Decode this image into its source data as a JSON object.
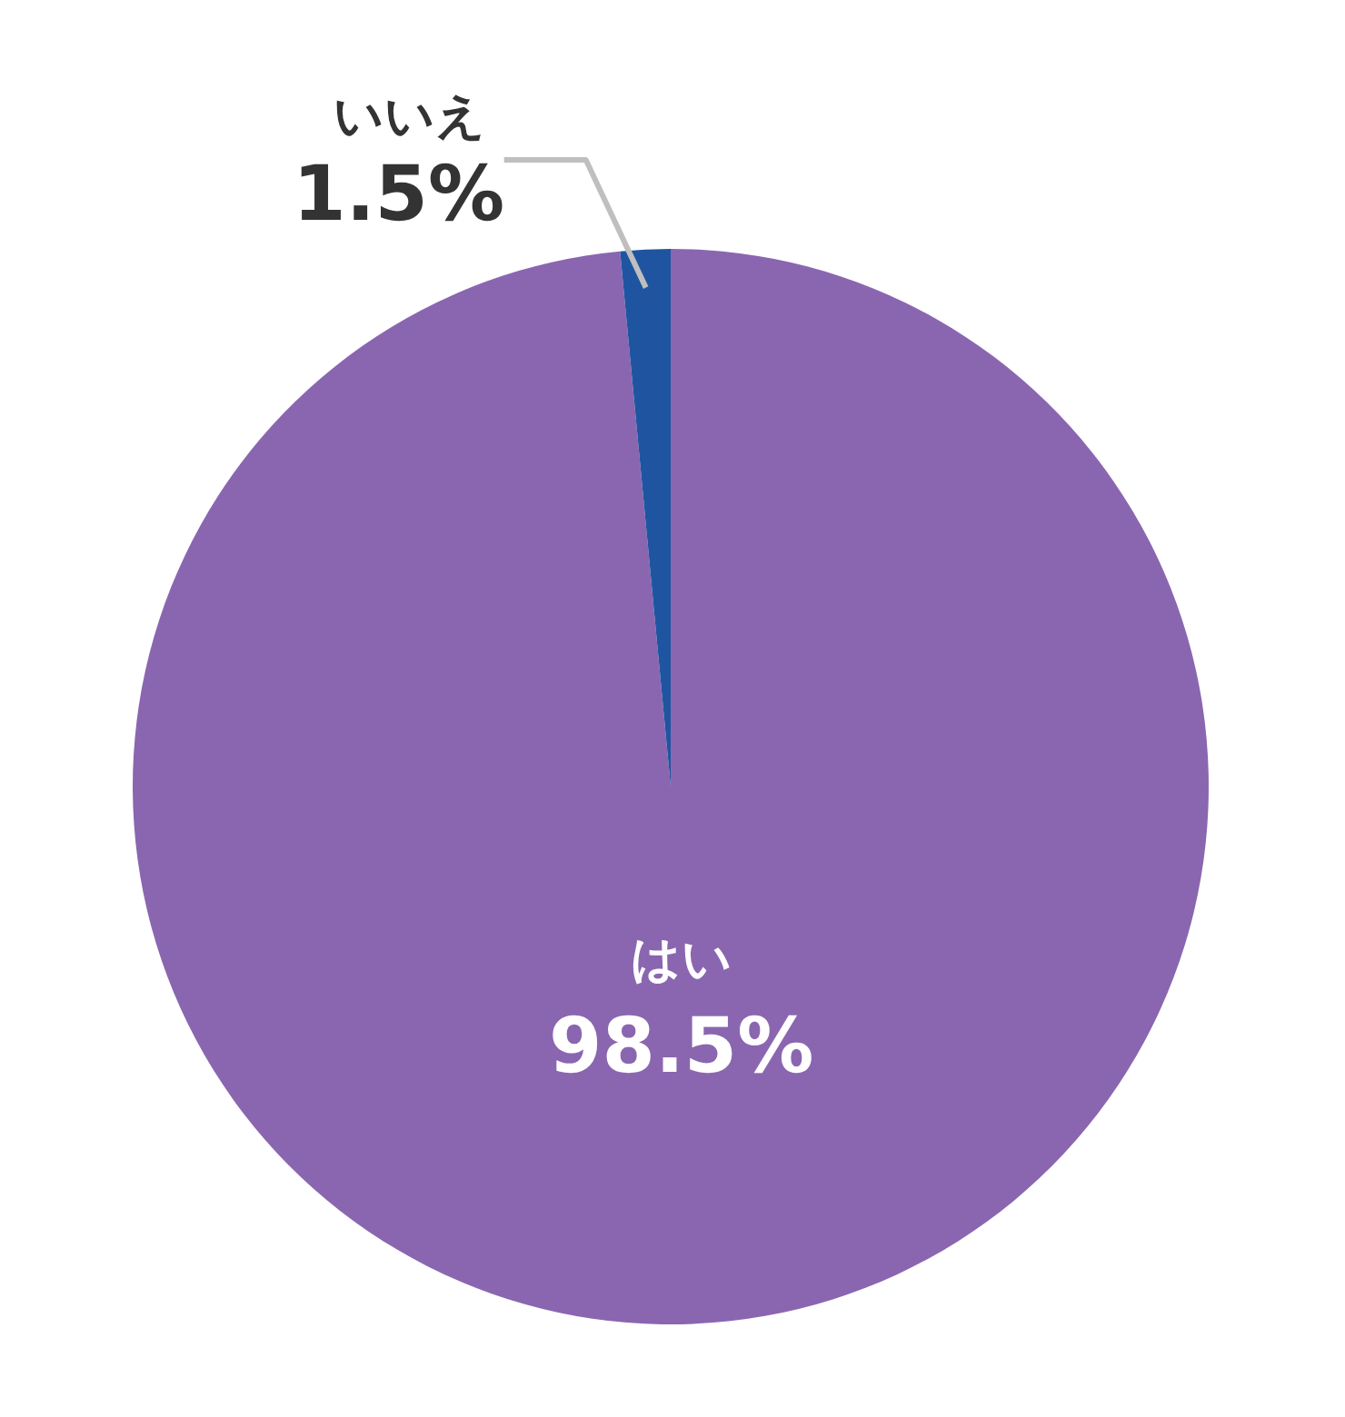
{
  "chart_data": {
    "type": "pie",
    "categories": [
      "はい",
      "いいえ"
    ],
    "values": [
      98.5,
      1.5
    ],
    "colors": [
      "#8a66b0",
      "#1f55a0"
    ],
    "value_labels": [
      "98.5%",
      "1.5%"
    ]
  }
}
